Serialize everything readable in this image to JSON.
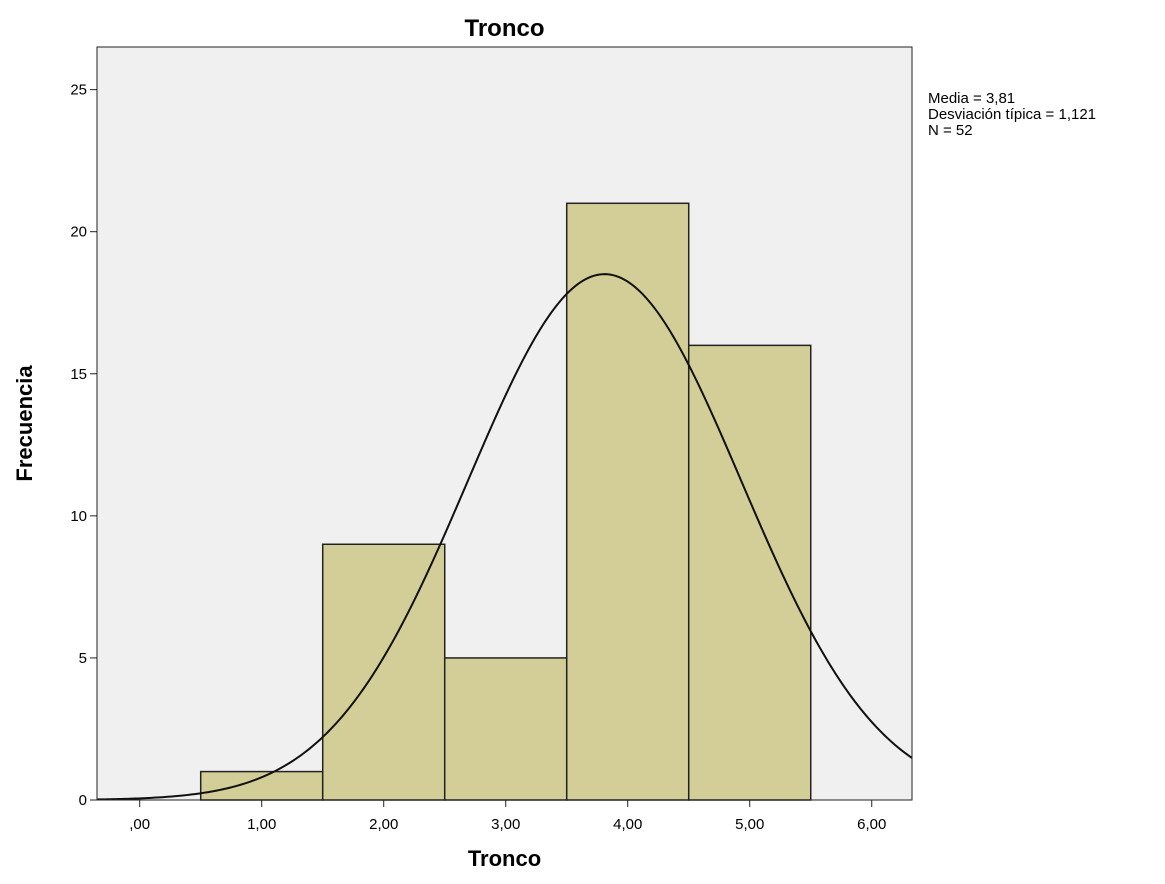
{
  "chart_data": {
    "type": "bar",
    "subtype": "histogram",
    "title": "Tronco",
    "xlabel": "Tronco",
    "ylabel": "Frecuencia",
    "xlim": [
      -0.35,
      6.33
    ],
    "ylim": [
      0,
      26.5
    ],
    "x_ticks": [
      {
        "value": 0,
        "label": ",00"
      },
      {
        "value": 1,
        "label": "1,00"
      },
      {
        "value": 2,
        "label": "2,00"
      },
      {
        "value": 3,
        "label": "3,00"
      },
      {
        "value": 4,
        "label": "4,00"
      },
      {
        "value": 5,
        "label": "5,00"
      },
      {
        "value": 6,
        "label": "6,00"
      }
    ],
    "y_ticks": [
      {
        "value": 0,
        "label": "0"
      },
      {
        "value": 5,
        "label": "5"
      },
      {
        "value": 10,
        "label": "10"
      },
      {
        "value": 15,
        "label": "15"
      },
      {
        "value": 20,
        "label": "20"
      },
      {
        "value": 25,
        "label": "25"
      }
    ],
    "bins": [
      {
        "from": 0.5,
        "to": 1.5,
        "value": 1
      },
      {
        "from": 1.5,
        "to": 2.5,
        "value": 9
      },
      {
        "from": 2.5,
        "to": 3.5,
        "value": 5
      },
      {
        "from": 3.5,
        "to": 4.5,
        "value": 21
      },
      {
        "from": 4.5,
        "to": 5.5,
        "value": 16
      }
    ],
    "normal_curve": {
      "mean": 3.81,
      "sd": 1.121,
      "n": 52,
      "bin_width": 1
    },
    "grid": false,
    "colors": {
      "bar_fill": "#d3ce97",
      "bar_stroke": "#222222",
      "plot_background": "#f0f0f0",
      "curve": "#111111"
    },
    "stats_lines": [
      "Media = 3,81",
      "Desviación típica = 1,121",
      "N = 52"
    ]
  }
}
